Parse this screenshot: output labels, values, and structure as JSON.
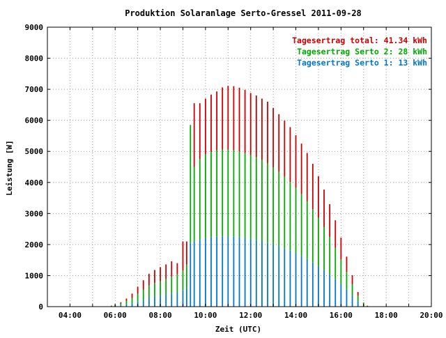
{
  "chart_data": {
    "type": "bar",
    "title": "Produktion Solaranlage Serto-Gressel 2011-09-28",
    "xlabel": "Zeit (UTC)",
    "ylabel": "Leistung [W]",
    "xlim": [
      "03:00",
      "20:00"
    ],
    "ylim": [
      0,
      9000
    ],
    "x_ticks": [
      "04:00",
      "06:00",
      "08:00",
      "10:00",
      "12:00",
      "14:00",
      "16:00",
      "18:00",
      "20:00"
    ],
    "y_ticks": [
      "0",
      "1000",
      "2000",
      "3000",
      "4000",
      "5000",
      "6000",
      "7000",
      "8000",
      "9000"
    ],
    "grid": true,
    "stacked": true,
    "legend_position": "top-right",
    "legend": [
      {
        "label": "Tagesertrag total: 41.34 kWh",
        "color": "#cc0000"
      },
      {
        "label": "Tagesertrag Serto 2: 28 kWh",
        "color": "#00aa00"
      },
      {
        "label": "Tagesertrag Serto 1: 13 kWh",
        "color": "#0077cc"
      }
    ],
    "series": [
      {
        "color": "#0077cc",
        "x": [
          "05:50",
          "06:00",
          "06:15",
          "06:30",
          "06:45",
          "07:00",
          "07:15",
          "07:30",
          "07:45",
          "08:00",
          "08:15",
          "08:30",
          "08:45",
          "09:00",
          "09:10",
          "09:20",
          "09:30",
          "09:45",
          "10:00",
          "10:15",
          "10:30",
          "10:45",
          "11:00",
          "11:15",
          "11:30",
          "11:45",
          "12:00",
          "12:15",
          "12:30",
          "12:45",
          "13:00",
          "13:15",
          "13:30",
          "13:45",
          "14:00",
          "14:15",
          "14:30",
          "14:45",
          "15:00",
          "15:15",
          "15:30",
          "15:45",
          "16:00",
          "16:15",
          "16:30",
          "16:45",
          "17:00",
          "17:10"
        ],
        "values": [
          10,
          20,
          40,
          70,
          110,
          160,
          220,
          280,
          320,
          350,
          380,
          420,
          460,
          520,
          600,
          2050,
          2100,
          2150,
          2200,
          2230,
          2250,
          2260,
          2260,
          2250,
          2230,
          2200,
          2180,
          2150,
          2110,
          2060,
          2000,
          1940,
          1870,
          1800,
          1720,
          1630,
          1530,
          1420,
          1300,
          1170,
          1030,
          880,
          720,
          540,
          350,
          170,
          50,
          10
        ]
      },
      {
        "color": "#00aa00",
        "x": [
          "05:50",
          "06:00",
          "06:15",
          "06:30",
          "06:45",
          "07:00",
          "07:15",
          "07:30",
          "07:45",
          "08:00",
          "08:15",
          "08:30",
          "08:45",
          "09:00",
          "09:10",
          "09:20",
          "09:30",
          "09:45",
          "10:00",
          "10:15",
          "10:30",
          "10:45",
          "11:00",
          "11:15",
          "11:30",
          "11:45",
          "12:00",
          "12:15",
          "12:30",
          "12:45",
          "13:00",
          "13:15",
          "13:30",
          "13:45",
          "14:00",
          "14:15",
          "14:30",
          "14:45",
          "15:00",
          "15:15",
          "15:30",
          "15:45",
          "16:00",
          "16:15",
          "16:30",
          "16:45",
          "17:00",
          "17:10"
        ],
        "values": [
          15,
          30,
          60,
          110,
          170,
          250,
          330,
          400,
          440,
          470,
          500,
          540,
          580,
          640,
          750,
          3800,
          2400,
          2600,
          2700,
          2750,
          2780,
          2800,
          2800,
          2790,
          2770,
          2740,
          2700,
          2660,
          2610,
          2550,
          2480,
          2400,
          2310,
          2210,
          2100,
          1990,
          1860,
          1720,
          1560,
          1390,
          1210,
          1010,
          800,
          580,
          370,
          180,
          60,
          15
        ]
      },
      {
        "color": "#cc0000",
        "x": [
          "05:50",
          "06:00",
          "06:15",
          "06:30",
          "06:45",
          "07:00",
          "07:15",
          "07:30",
          "07:45",
          "08:00",
          "08:15",
          "08:30",
          "08:45",
          "09:00",
          "09:10",
          "09:20",
          "09:30",
          "09:45",
          "10:00",
          "10:15",
          "10:30",
          "10:45",
          "11:00",
          "11:15",
          "11:30",
          "11:45",
          "12:00",
          "12:15",
          "12:30",
          "12:45",
          "13:00",
          "13:15",
          "13:30",
          "13:45",
          "14:00",
          "14:15",
          "14:30",
          "14:45",
          "15:00",
          "15:15",
          "15:30",
          "15:45",
          "16:00",
          "16:15",
          "16:30",
          "16:45",
          "17:00",
          "17:10"
        ],
        "values": [
          5,
          15,
          40,
          80,
          140,
          230,
          300,
          380,
          420,
          450,
          480,
          500,
          360,
          940,
          750,
          0,
          2050,
          1800,
          1800,
          1850,
          1900,
          2000,
          2050,
          2060,
          2050,
          2040,
          2000,
          1990,
          1980,
          1990,
          1920,
          1860,
          1810,
          1770,
          1700,
          1630,
          1560,
          1460,
          1340,
          1210,
          1060,
          890,
          700,
          490,
          290,
          120,
          20,
          5
        ]
      }
    ]
  }
}
